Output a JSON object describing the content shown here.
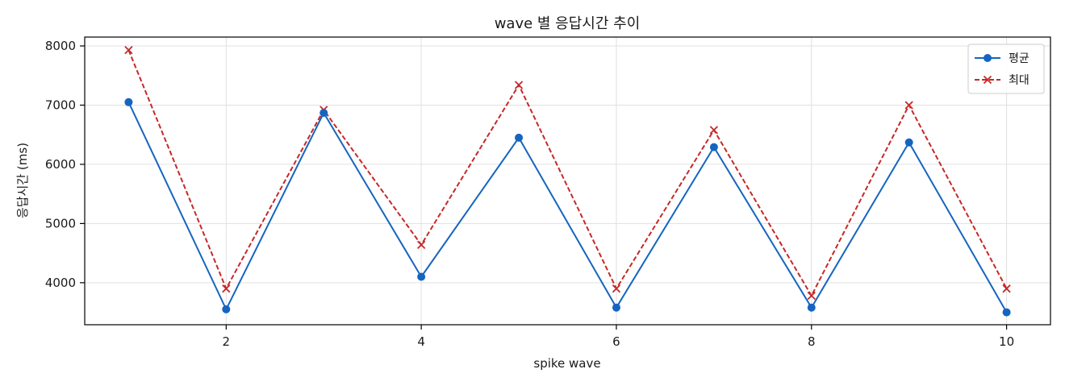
{
  "chart_data": {
    "type": "line",
    "title": "wave 별 응답시간 추이",
    "xlabel": "spike wave",
    "ylabel": "응답시간 (ms)",
    "x": [
      1,
      2,
      3,
      4,
      5,
      6,
      7,
      8,
      9,
      10
    ],
    "xlim": [
      0.55,
      10.45
    ],
    "ylim": [
      3290,
      8150
    ],
    "x_ticks": [
      2,
      4,
      6,
      8,
      10
    ],
    "y_ticks": [
      4000,
      5000,
      6000,
      7000,
      8000
    ],
    "grid": true,
    "legend_position": "top-right",
    "series": [
      {
        "name": "평균",
        "values": [
          7050,
          3550,
          6870,
          4100,
          6450,
          3580,
          6290,
          3580,
          6370,
          3500
        ],
        "color": "#1565c0",
        "line_style": "solid",
        "marker": "circle"
      },
      {
        "name": "최대",
        "values": [
          7930,
          3900,
          6920,
          4640,
          7340,
          3900,
          6580,
          3780,
          7000,
          3900
        ],
        "color": "#c62828",
        "line_style": "dashed",
        "marker": "x"
      }
    ]
  }
}
